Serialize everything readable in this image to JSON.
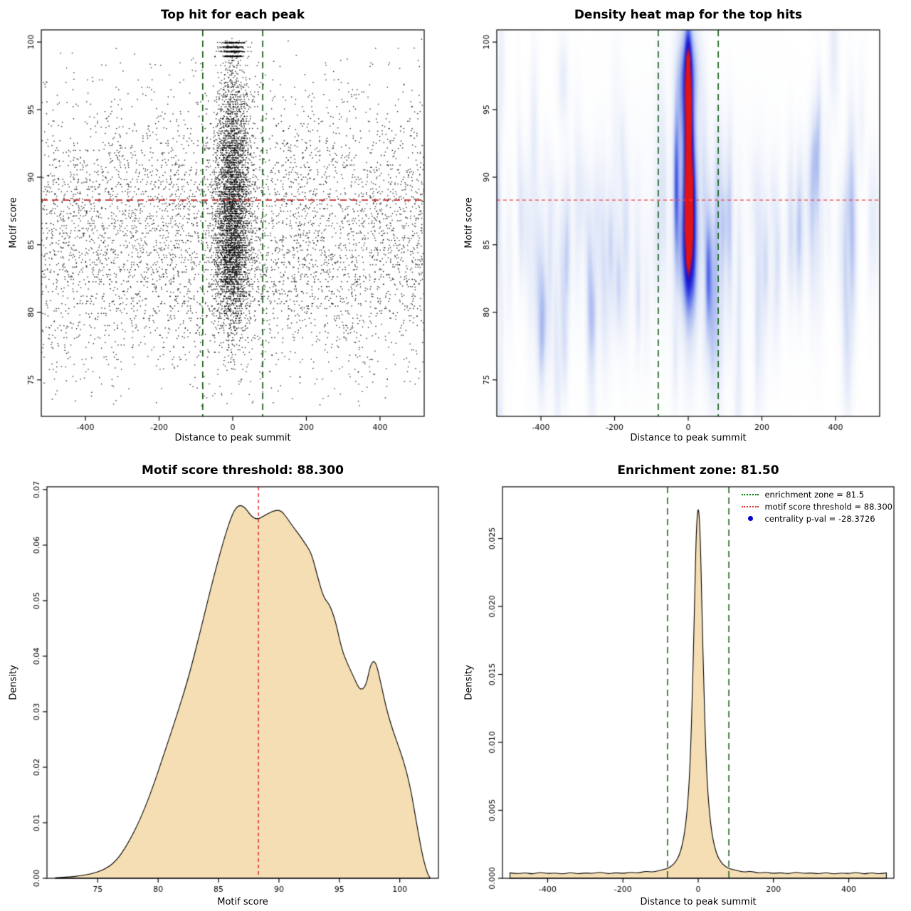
{
  "key_values": {
    "motif_score_threshold": "88.300",
    "enrichment_zone": "81.50",
    "centrality_pval": "-28.3726"
  },
  "chart_data": [
    {
      "type": "scatter",
      "title": "Top hit for each peak",
      "xlabel": "Distance to peak summit",
      "ylabel": "Motif score",
      "xlim": [
        -520,
        520
      ],
      "ylim": [
        72.3,
        100.9
      ],
      "xticks": [
        -400,
        -200,
        0,
        200,
        400
      ],
      "xtick_labels": [
        "-400",
        "-200",
        "0",
        "200",
        "400"
      ],
      "yticks": [
        75,
        80,
        85,
        90,
        95,
        100
      ],
      "ytick_labels": [
        "75",
        "80",
        "85",
        "90",
        "95",
        "100"
      ],
      "point_color": "#000000",
      "hlines": [
        {
          "y": 88.3,
          "color": "#c62828",
          "style": "dash",
          "width": 1.8
        }
      ],
      "vlines": [
        {
          "x": -81.5,
          "color": "#145a14",
          "style": "dash",
          "width": 1.7
        },
        {
          "x": 81.5,
          "color": "#145a14",
          "style": "dash",
          "width": 1.7
        }
      ],
      "generator": {
        "seed": 42,
        "y_min": 73.0,
        "y_max": 100.3,
        "quantize_step": 0.18,
        "quantize_frac": 0.5,
        "background": {
          "n": 5200,
          "y_mu": 85.8,
          "y_sd": 5.2
        },
        "column": {
          "n": 4300,
          "x_sd": 24,
          "comps": [
            {
              "mu": 89.5,
              "sd": 4.6,
              "w": 0.62
            },
            {
              "mu": 84.3,
              "sd": 3.0,
              "w": 0.38
            }
          ]
        },
        "top_bands": {
          "n": 420,
          "x_sd": 16,
          "levels": [
            99.95,
            99.62,
            99.3,
            98.95
          ],
          "jitter": 0.07
        }
      }
    },
    {
      "type": "heatmap",
      "title": "Density heat map for the top hits",
      "xlabel": "Distance to peak summit",
      "ylabel": "Motif score",
      "xlim": [
        -520,
        520
      ],
      "ylim": [
        72.3,
        100.9
      ],
      "xticks": [
        -400,
        -200,
        0,
        200,
        400
      ],
      "xtick_labels": [
        "-400",
        "-200",
        "0",
        "200",
        "400"
      ],
      "yticks": [
        75,
        80,
        85,
        90,
        95,
        100
      ],
      "ytick_labels": [
        "75",
        "80",
        "85",
        "90",
        "95",
        "100"
      ],
      "hlines": [
        {
          "y": 88.3,
          "color": "#ee4444",
          "style": "dash2",
          "width": 1.2
        }
      ],
      "vlines": [
        {
          "x": -81.5,
          "color": "#145a14",
          "style": "dash",
          "width": 1.6
        },
        {
          "x": 81.5,
          "color": "#145a14",
          "style": "dash",
          "width": 1.6
        }
      ],
      "color_stops": [
        [
          0.0,
          "#ffffff"
        ],
        [
          0.22,
          "#dde5f8"
        ],
        [
          0.42,
          "#a6b7f0"
        ],
        [
          0.6,
          "#5a6ee8"
        ],
        [
          0.74,
          "#2a2ee0"
        ],
        [
          0.84,
          "#1616c8"
        ],
        [
          0.9,
          "#4a10a8"
        ],
        [
          0.95,
          "#8c1060"
        ],
        [
          1.0,
          "#e01414"
        ]
      ],
      "model": {
        "core": {
          "amp": 1.0,
          "sx": 6.5,
          "y0": 87,
          "y1": 99,
          "soft": 2.2
        },
        "column": {
          "amp": 0.55,
          "sx": 19,
          "ycomps": [
            {
              "mu": 84.5,
              "sd": 3.2,
              "w": 0.85
            },
            {
              "mu": 92,
              "sd": 6,
              "w": 0.75
            },
            {
              "mu": 98,
              "sd": 2.2,
              "w": 0.65
            }
          ]
        },
        "haze": {
          "amp": 0.05,
          "sx": 170,
          "ymu": 86,
          "ysd": 7
        },
        "streaks": {
          "count": 140,
          "seed": 7,
          "amp_min": 0.05,
          "amp_max": 0.16,
          "sx_min": 4,
          "sx_max": 9,
          "sy_min": 2,
          "sy_max": 5,
          "ymu": 85.5,
          "ysd": 5.5
        }
      }
    },
    {
      "type": "area",
      "title": "Motif score threshold: 88.300",
      "xlabel": "Motif score",
      "ylabel": "Density",
      "xlim": [
        70.8,
        103.2
      ],
      "ylim": [
        0,
        0.0705
      ],
      "xticks": [
        75,
        80,
        85,
        90,
        95,
        100
      ],
      "xtick_labels": [
        "75",
        "80",
        "85",
        "90",
        "95",
        "100"
      ],
      "yticks": [
        0,
        0.01,
        0.02,
        0.03,
        0.04,
        0.05,
        0.06,
        0.07
      ],
      "ytick_labels": [
        "0.00",
        "0.01",
        "0.02",
        "0.03",
        "0.04",
        "0.05",
        "0.06",
        "0.07"
      ],
      "fill": "#f5deb3",
      "vlines": [
        {
          "x": 88.3,
          "color": "#e03030",
          "style": "dash2",
          "width": 1.5
        }
      ],
      "points": [
        [
          71.5,
          0.0001
        ],
        [
          72.5,
          0.0002
        ],
        [
          73.5,
          0.0004
        ],
        [
          74.5,
          0.0008
        ],
        [
          75.5,
          0.0015
        ],
        [
          76.5,
          0.003
        ],
        [
          77.5,
          0.0062
        ],
        [
          78.5,
          0.0105
        ],
        [
          79.5,
          0.016
        ],
        [
          80.5,
          0.0225
        ],
        [
          81.5,
          0.029
        ],
        [
          82.5,
          0.036
        ],
        [
          83.5,
          0.0445
        ],
        [
          84.5,
          0.0535
        ],
        [
          85.5,
          0.0615
        ],
        [
          86.2,
          0.066
        ],
        [
          86.7,
          0.0673
        ],
        [
          87.2,
          0.0668
        ],
        [
          87.7,
          0.0652
        ],
        [
          88.2,
          0.0646
        ],
        [
          88.7,
          0.0652
        ],
        [
          89.2,
          0.0658
        ],
        [
          89.7,
          0.0663
        ],
        [
          90.2,
          0.0662
        ],
        [
          90.7,
          0.0648
        ],
        [
          91.2,
          0.0632
        ],
        [
          91.7,
          0.0618
        ],
        [
          92.2,
          0.0602
        ],
        [
          92.7,
          0.0585
        ],
        [
          93.2,
          0.0543
        ],
        [
          93.7,
          0.0505
        ],
        [
          94.2,
          0.0493
        ],
        [
          94.7,
          0.0462
        ],
        [
          95.2,
          0.0412
        ],
        [
          95.7,
          0.0385
        ],
        [
          96.2,
          0.0362
        ],
        [
          96.7,
          0.0338
        ],
        [
          97.2,
          0.0345
        ],
        [
          97.6,
          0.0388
        ],
        [
          98.0,
          0.0392
        ],
        [
          98.4,
          0.0355
        ],
        [
          98.9,
          0.0305
        ],
        [
          99.4,
          0.0268
        ],
        [
          99.9,
          0.0238
        ],
        [
          100.4,
          0.0205
        ],
        [
          100.9,
          0.0162
        ],
        [
          101.4,
          0.0098
        ],
        [
          101.9,
          0.0038
        ],
        [
          102.3,
          0.0008
        ],
        [
          102.5,
          0.0001
        ]
      ]
    },
    {
      "type": "area",
      "title": "Enrichment zone: 81.50",
      "xlabel": "Distance to peak summit",
      "ylabel": "Density",
      "xlim": [
        -520,
        520
      ],
      "ylim": [
        0,
        0.0288
      ],
      "xticks": [
        -400,
        -200,
        0,
        200,
        400
      ],
      "xtick_labels": [
        "-400",
        "-200",
        "0",
        "200",
        "400"
      ],
      "yticks": [
        0,
        0.005,
        0.01,
        0.015,
        0.02,
        0.025
      ],
      "ytick_labels": [
        "0.000",
        "0.005",
        "0.010",
        "0.015",
        "0.020",
        "0.025"
      ],
      "fill": "#f5deb3",
      "vlines": [
        {
          "x": -81.5,
          "color": "#145a14",
          "style": "dash",
          "width": 1.5
        },
        {
          "x": 81.5,
          "color": "#145a14",
          "style": "dash",
          "width": 1.5
        }
      ],
      "points": [
        [
          -500,
          0.0004
        ],
        [
          -480,
          0.00032
        ],
        [
          -460,
          0.00042
        ],
        [
          -440,
          0.0003
        ],
        [
          -420,
          0.00045
        ],
        [
          -400,
          0.00034
        ],
        [
          -380,
          0.0004
        ],
        [
          -360,
          0.0003
        ],
        [
          -340,
          0.00044
        ],
        [
          -320,
          0.00032
        ],
        [
          -300,
          0.0004
        ],
        [
          -280,
          0.00035
        ],
        [
          -260,
          0.00046
        ],
        [
          -240,
          0.00032
        ],
        [
          -220,
          0.00042
        ],
        [
          -200,
          0.00035
        ],
        [
          -180,
          0.00045
        ],
        [
          -160,
          0.00038
        ],
        [
          -140,
          0.00052
        ],
        [
          -120,
          0.00045
        ],
        [
          -100,
          0.0006
        ],
        [
          -85,
          0.00068
        ],
        [
          -70,
          0.0009
        ],
        [
          -60,
          0.0012
        ],
        [
          -50,
          0.0017
        ],
        [
          -40,
          0.0027
        ],
        [
          -32,
          0.0042
        ],
        [
          -25,
          0.0065
        ],
        [
          -20,
          0.0095
        ],
        [
          -15,
          0.014
        ],
        [
          -10,
          0.0198
        ],
        [
          -6,
          0.0247
        ],
        [
          -3,
          0.0266
        ],
        [
          0,
          0.0273
        ],
        [
          3,
          0.0266
        ],
        [
          6,
          0.0247
        ],
        [
          10,
          0.0198
        ],
        [
          15,
          0.014
        ],
        [
          20,
          0.0095
        ],
        [
          25,
          0.0065
        ],
        [
          32,
          0.0042
        ],
        [
          40,
          0.0027
        ],
        [
          50,
          0.0017
        ],
        [
          60,
          0.0012
        ],
        [
          70,
          0.0009
        ],
        [
          85,
          0.00068
        ],
        [
          100,
          0.0006
        ],
        [
          120,
          0.00045
        ],
        [
          140,
          0.00052
        ],
        [
          160,
          0.00038
        ],
        [
          180,
          0.00045
        ],
        [
          200,
          0.00035
        ],
        [
          220,
          0.00042
        ],
        [
          240,
          0.00032
        ],
        [
          260,
          0.00046
        ],
        [
          280,
          0.00035
        ],
        [
          300,
          0.0004
        ],
        [
          320,
          0.00032
        ],
        [
          340,
          0.00044
        ],
        [
          360,
          0.0003
        ],
        [
          380,
          0.0004
        ],
        [
          400,
          0.00034
        ],
        [
          420,
          0.00045
        ],
        [
          440,
          0.0003
        ],
        [
          460,
          0.00042
        ],
        [
          480,
          0.00032
        ],
        [
          500,
          0.0004
        ]
      ],
      "legend": {
        "items": [
          {
            "label": "enrichment zone = 81.5",
            "color": "#008000",
            "marker": "dotted-line"
          },
          {
            "label": "motif score threshold = 88.300",
            "color": "#e03030",
            "marker": "dotted-line"
          },
          {
            "label": "centrality p-val = -28.3726",
            "color": "#0000cc",
            "marker": "point"
          }
        ]
      }
    }
  ]
}
